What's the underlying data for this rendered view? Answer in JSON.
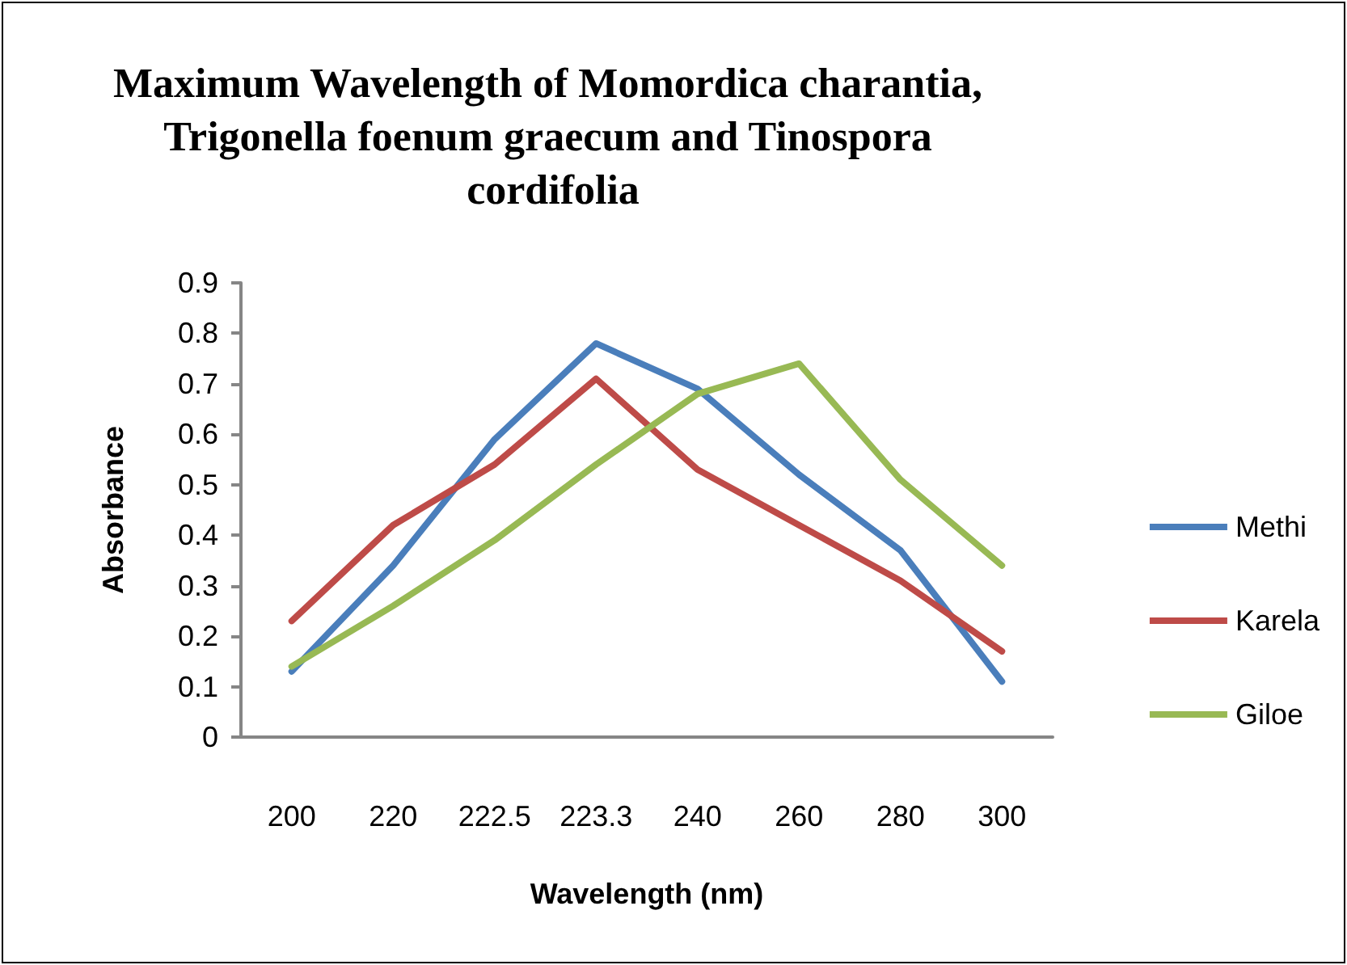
{
  "chart_data": {
    "type": "line",
    "title": "Maximum Wavelength of Momordica charantia, Trigonella foenum graecum and Tinospora cordifolia",
    "xlabel": "Wavelength (nm)",
    "ylabel": "Absorbance",
    "categories": [
      "200",
      "220",
      "222.5",
      "223.3",
      "240",
      "260",
      "280",
      "300"
    ],
    "series": [
      {
        "name": "Methi",
        "color": "#4a7ebb",
        "values": [
          0.13,
          0.34,
          0.59,
          0.78,
          0.69,
          0.52,
          0.37,
          0.11
        ]
      },
      {
        "name": "Karela",
        "color": "#be4b48",
        "values": [
          0.23,
          0.42,
          0.54,
          0.71,
          0.53,
          0.42,
          0.31,
          0.17
        ]
      },
      {
        "name": "Giloe",
        "color": "#98b954",
        "values": [
          0.14,
          0.26,
          0.39,
          0.54,
          0.68,
          0.74,
          0.51,
          0.34
        ]
      }
    ],
    "ylim": [
      0,
      0.9
    ],
    "yticks": [
      0,
      0.1,
      0.2,
      0.3,
      0.4,
      0.5,
      0.6,
      0.7,
      0.8,
      0.9
    ],
    "grid": false,
    "legend": "right",
    "marker": "none",
    "line_style": "solid"
  }
}
